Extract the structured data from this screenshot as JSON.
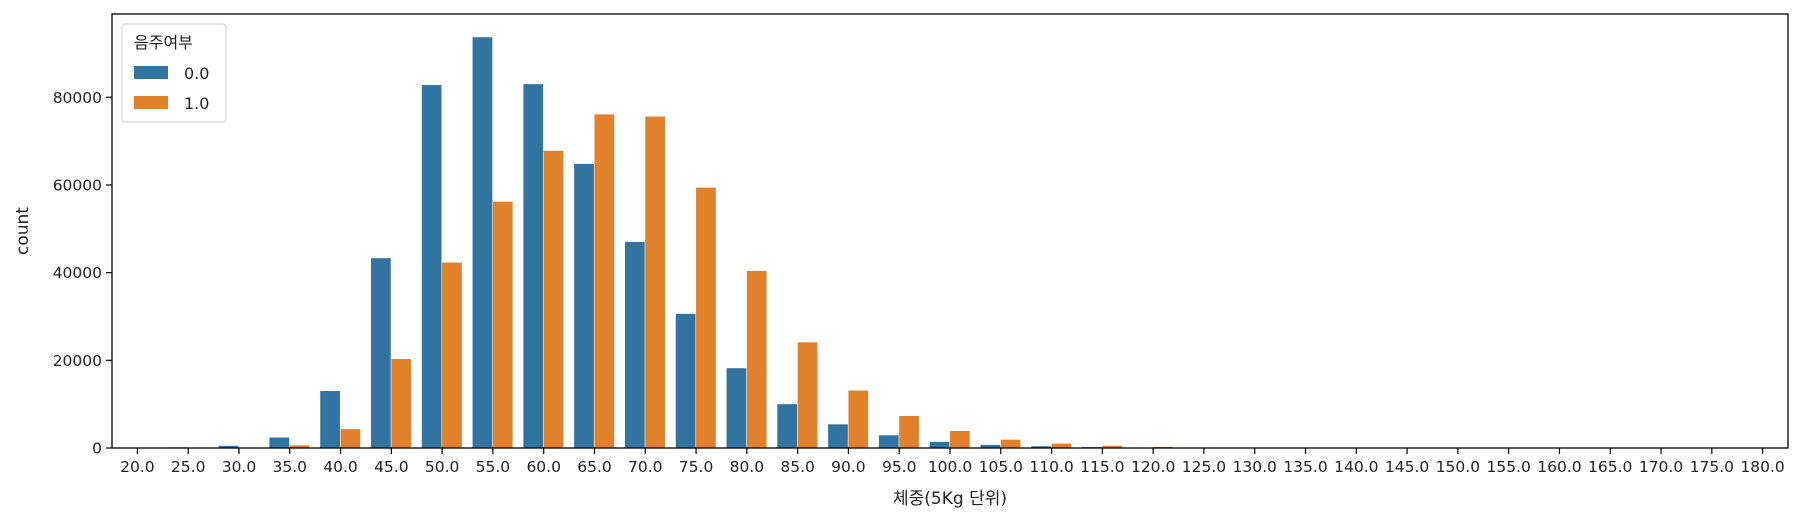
{
  "chart_data": {
    "type": "bar",
    "title": "",
    "xlabel": "체중(5Kg 단위)",
    "ylabel": "count",
    "ylim": [
      0,
      99000
    ],
    "yticks": [
      0,
      20000,
      40000,
      60000,
      80000
    ],
    "ytick_labels": [
      "0",
      "20000",
      "40000",
      "60000",
      "80000"
    ],
    "grid": false,
    "legend": {
      "title": "음주여부",
      "placement": "top-left"
    },
    "categories": [
      "20.0",
      "25.0",
      "30.0",
      "35.0",
      "40.0",
      "45.0",
      "50.0",
      "55.0",
      "60.0",
      "65.0",
      "70.0",
      "75.0",
      "80.0",
      "85.0",
      "90.0",
      "95.0",
      "100.0",
      "105.0",
      "110.0",
      "115.0",
      "120.0",
      "125.0",
      "130.0",
      "135.0",
      "140.0",
      "145.0",
      "150.0",
      "155.0",
      "160.0",
      "165.0",
      "170.0",
      "175.0",
      "180.0"
    ],
    "series": [
      {
        "name": "0.0",
        "color": "#3274a1",
        "values": [
          30,
          150,
          500,
          2400,
          13000,
          43300,
          82800,
          93700,
          83000,
          64800,
          47000,
          30600,
          18200,
          10000,
          5400,
          2900,
          1400,
          700,
          400,
          200,
          80,
          30,
          15,
          8,
          5,
          3,
          2,
          1,
          1,
          0,
          0,
          0,
          0
        ]
      },
      {
        "name": "1.0",
        "color": "#e1812c",
        "values": [
          5,
          30,
          100,
          600,
          4300,
          20300,
          42300,
          56200,
          67800,
          76100,
          75600,
          59400,
          40400,
          24100,
          13100,
          7300,
          3900,
          1900,
          1000,
          500,
          250,
          120,
          60,
          30,
          15,
          8,
          4,
          2,
          1,
          1,
          0,
          0,
          1
        ]
      }
    ]
  }
}
